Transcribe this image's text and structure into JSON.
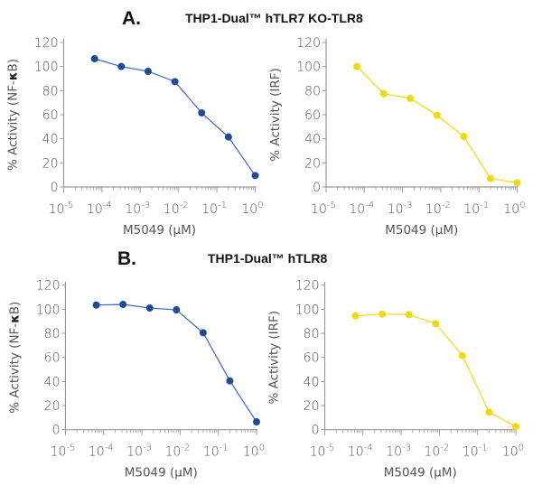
{
  "panels": [
    {
      "letter": "A.",
      "title": "THP1-Dual™ hTLR7 KO-TLR8"
    },
    {
      "letter": "B.",
      "title": "THP1-Dual™ hTLR8"
    }
  ],
  "chart_data": [
    {
      "type": "line",
      "panel": "A",
      "xscale": "log",
      "xlim": [
        1e-05,
        1
      ],
      "ylim": [
        0,
        120
      ],
      "xlabel": "M5049 (µM)",
      "ylabel": "% Activity (NF-κB)",
      "xticks": [
        "-5",
        "-4",
        "-3",
        "-2",
        "-1",
        "0"
      ],
      "yticks": [
        0,
        20,
        40,
        60,
        80,
        100,
        120
      ],
      "color": "#1f4a9a",
      "x": [
        6.4e-05,
        0.00032,
        0.0016,
        0.008,
        0.04,
        0.2,
        1
      ],
      "y": [
        106.5,
        100,
        96,
        87.5,
        61.5,
        41.5,
        9.5
      ]
    },
    {
      "type": "line",
      "panel": "A",
      "xscale": "log",
      "xlim": [
        1e-05,
        1
      ],
      "ylim": [
        0,
        120
      ],
      "xlabel": "M5049 (µM)",
      "ylabel": "% Activity (IRF)",
      "xticks": [
        "-5",
        "-4",
        "-3",
        "-2",
        "-1",
        "0"
      ],
      "yticks": [
        0,
        20,
        40,
        60,
        80,
        100,
        120
      ],
      "color": "#f2d90f",
      "x": [
        6.4e-05,
        0.00032,
        0.0016,
        0.008,
        0.04,
        0.2,
        1
      ],
      "y": [
        100,
        77.5,
        73.5,
        59.5,
        42,
        7,
        3.5
      ]
    },
    {
      "type": "line",
      "panel": "B",
      "xscale": "log",
      "xlim": [
        1e-05,
        1
      ],
      "ylim": [
        0,
        120
      ],
      "xlabel": "M5049 (µM)",
      "ylabel": "% Activity (NF-κB)",
      "xticks": [
        "-5",
        "-4",
        "-3",
        "-2",
        "-1",
        "0"
      ],
      "yticks": [
        0,
        20,
        40,
        60,
        80,
        100,
        120
      ],
      "color": "#1f4a9a",
      "x": [
        6.4e-05,
        0.00032,
        0.0016,
        0.008,
        0.04,
        0.2,
        1
      ],
      "y": [
        103.5,
        104,
        101,
        99.5,
        80.5,
        40.5,
        6.5
      ]
    },
    {
      "type": "line",
      "panel": "B",
      "xscale": "log",
      "xlim": [
        1e-05,
        1
      ],
      "ylim": [
        0,
        120
      ],
      "xlabel": "M5049 (µM)",
      "ylabel": "% Activity (IRF)",
      "xticks": [
        "-5",
        "-4",
        "-3",
        "-2",
        "-1",
        "0"
      ],
      "yticks": [
        0,
        20,
        40,
        60,
        80,
        100,
        120
      ],
      "color": "#f2d90f",
      "x": [
        6.4e-05,
        0.00032,
        0.0016,
        0.008,
        0.04,
        0.2,
        1
      ],
      "y": [
        94.5,
        96,
        95.5,
        88,
        61.5,
        14.5,
        2.5
      ]
    }
  ]
}
